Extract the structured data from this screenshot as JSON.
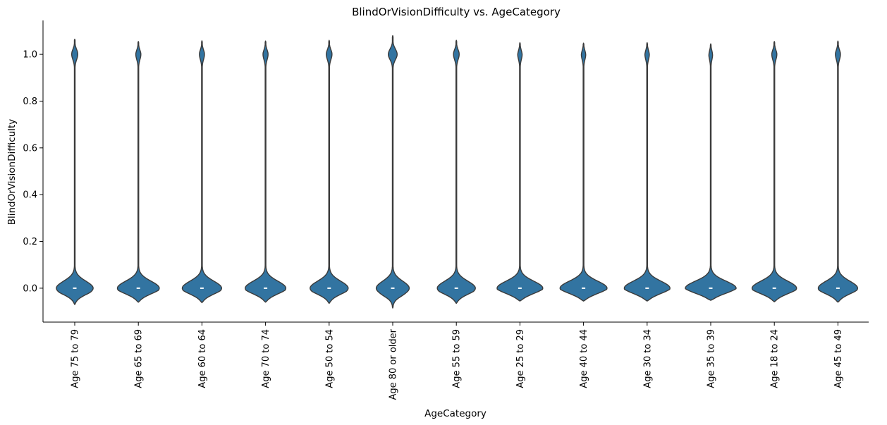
{
  "chart_data": {
    "type": "violin",
    "title": "BlindOrVisionDifficulty vs. AgeCategory",
    "xlabel": "AgeCategory",
    "ylabel": "BlindOrVisionDifficulty",
    "ylim": [
      -0.145,
      1.145
    ],
    "yticks": [
      "0.0",
      "0.2",
      "0.4",
      "0.6",
      "0.8",
      "1.0"
    ],
    "yticks_values": [
      0.0,
      0.2,
      0.4,
      0.6,
      0.8,
      1.0
    ],
    "color": "#3274a1",
    "edge_color": "#3b3b3b",
    "grid": false,
    "categories": [
      "Age 75 to 79",
      "Age 65 to 69",
      "Age 60 to 64",
      "Age 70 to 74",
      "Age 50 to 54",
      "Age 80 or older",
      "Age 55 to 59",
      "Age 25 to 29",
      "Age 40 to 44",
      "Age 30 to 34",
      "Age 35 to 39",
      "Age 18 to 24",
      "Age 45 to 49"
    ],
    "violins": [
      {
        "width0": 0.29,
        "width1": 0.048,
        "min": -0.07,
        "max": 1.065
      },
      {
        "width0": 0.33,
        "width1": 0.04,
        "min": -0.06,
        "max": 1.055
      },
      {
        "width0": 0.31,
        "width1": 0.04,
        "min": -0.062,
        "max": 1.058
      },
      {
        "width0": 0.32,
        "width1": 0.04,
        "min": -0.06,
        "max": 1.057
      },
      {
        "width0": 0.3,
        "width1": 0.045,
        "min": -0.065,
        "max": 1.06
      },
      {
        "width0": 0.26,
        "width1": 0.07,
        "min": -0.085,
        "max": 1.08
      },
      {
        "width0": 0.3,
        "width1": 0.045,
        "min": -0.065,
        "max": 1.06
      },
      {
        "width0": 0.36,
        "width1": 0.035,
        "min": -0.055,
        "max": 1.05
      },
      {
        "width0": 0.37,
        "width1": 0.035,
        "min": -0.055,
        "max": 1.048
      },
      {
        "width0": 0.36,
        "width1": 0.035,
        "min": -0.055,
        "max": 1.05
      },
      {
        "width0": 0.4,
        "width1": 0.03,
        "min": -0.052,
        "max": 1.045
      },
      {
        "width0": 0.35,
        "width1": 0.04,
        "min": -0.058,
        "max": 1.055
      },
      {
        "width0": 0.31,
        "width1": 0.04,
        "min": -0.06,
        "max": 1.057
      }
    ]
  }
}
